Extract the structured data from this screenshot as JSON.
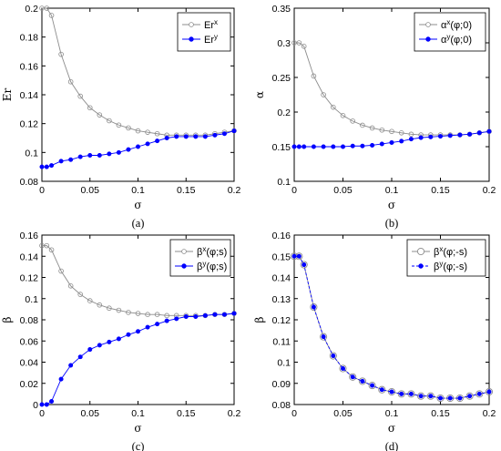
{
  "chart_data": [
    {
      "type": "line",
      "panel_label": "(a)",
      "xlabel": "σ",
      "ylabel": "Er",
      "xlim": [
        0,
        0.2
      ],
      "ylim": [
        0.08,
        0.2
      ],
      "xticks": [
        "0",
        "0.05",
        "0.1",
        "0.15",
        "0.2"
      ],
      "yticks": [
        "0.08",
        "0.1",
        "0.12",
        "0.14",
        "0.16",
        "0.18",
        "0.2"
      ],
      "xtick_values": [
        0,
        0.05,
        0.1,
        0.15,
        0.2
      ],
      "ytick_values": [
        0.08,
        0.1,
        0.12,
        0.14,
        0.16,
        0.18,
        0.2
      ],
      "legend_position": "top-right",
      "x": [
        0,
        0.005,
        0.01,
        0.02,
        0.03,
        0.04,
        0.05,
        0.06,
        0.07,
        0.08,
        0.09,
        0.1,
        0.11,
        0.12,
        0.13,
        0.14,
        0.15,
        0.16,
        0.17,
        0.18,
        0.19,
        0.2
      ],
      "series": [
        {
          "name": "Er",
          "name_sup": "x",
          "color": "#8c8c8c",
          "marker": "open-circle",
          "values": [
            0.2,
            0.2,
            0.195,
            0.168,
            0.149,
            0.139,
            0.131,
            0.126,
            0.122,
            0.119,
            0.117,
            0.115,
            0.114,
            0.113,
            0.112,
            0.112,
            0.112,
            0.112,
            0.112,
            0.113,
            0.114,
            0.115
          ]
        },
        {
          "name": "Er",
          "name_sup": "y",
          "color": "#0000ff",
          "marker": "filled-circle",
          "values": [
            0.09,
            0.09,
            0.091,
            0.094,
            0.095,
            0.097,
            0.098,
            0.098,
            0.099,
            0.1,
            0.102,
            0.104,
            0.106,
            0.108,
            0.11,
            0.111,
            0.111,
            0.111,
            0.111,
            0.112,
            0.113,
            0.115
          ]
        }
      ]
    },
    {
      "type": "line",
      "panel_label": "(b)",
      "xlabel": "σ",
      "ylabel": "α",
      "xlim": [
        0,
        0.2
      ],
      "ylim": [
        0.1,
        0.35
      ],
      "xticks": [
        "0",
        "0.05",
        "0.1",
        "0.15",
        "0.2"
      ],
      "yticks": [
        "0.1",
        "0.15",
        "0.2",
        "0.25",
        "0.3",
        "0.35"
      ],
      "xtick_values": [
        0,
        0.05,
        0.1,
        0.15,
        0.2
      ],
      "ytick_values": [
        0.1,
        0.15,
        0.2,
        0.25,
        0.3,
        0.35
      ],
      "legend_position": "top-right",
      "x": [
        0,
        0.005,
        0.01,
        0.02,
        0.03,
        0.04,
        0.05,
        0.06,
        0.07,
        0.08,
        0.09,
        0.1,
        0.11,
        0.12,
        0.13,
        0.14,
        0.15,
        0.16,
        0.17,
        0.18,
        0.19,
        0.2
      ],
      "series": [
        {
          "name": "α",
          "name_sup": "x",
          "name_suffix": "(φ;0)",
          "color": "#8c8c8c",
          "marker": "open-circle",
          "values": [
            0.3,
            0.3,
            0.295,
            0.252,
            0.225,
            0.207,
            0.195,
            0.187,
            0.181,
            0.177,
            0.174,
            0.172,
            0.17,
            0.168,
            0.167,
            0.167,
            0.167,
            0.167,
            0.167,
            0.168,
            0.17,
            0.172
          ]
        },
        {
          "name": "α",
          "name_sup": "y",
          "name_suffix": "(φ;0)",
          "color": "#0000ff",
          "marker": "filled-circle",
          "values": [
            0.15,
            0.15,
            0.15,
            0.15,
            0.15,
            0.15,
            0.15,
            0.151,
            0.151,
            0.152,
            0.154,
            0.156,
            0.158,
            0.161,
            0.163,
            0.164,
            0.165,
            0.166,
            0.167,
            0.168,
            0.17,
            0.172
          ]
        }
      ]
    },
    {
      "type": "line",
      "panel_label": "(c)",
      "xlabel": "σ",
      "ylabel": "β",
      "xlim": [
        0,
        0.2
      ],
      "ylim": [
        0,
        0.16
      ],
      "xticks": [
        "0",
        "0.05",
        "0.1",
        "0.15",
        "0.2"
      ],
      "yticks": [
        "0",
        "0.02",
        "0.04",
        "0.06",
        "0.08",
        "0.1",
        "0.12",
        "0.14",
        "0.16"
      ],
      "xtick_values": [
        0,
        0.05,
        0.1,
        0.15,
        0.2
      ],
      "ytick_values": [
        0,
        0.02,
        0.04,
        0.06,
        0.08,
        0.1,
        0.12,
        0.14,
        0.16
      ],
      "legend_position": "top-right",
      "x": [
        0,
        0.005,
        0.01,
        0.02,
        0.03,
        0.04,
        0.05,
        0.06,
        0.07,
        0.08,
        0.09,
        0.1,
        0.11,
        0.12,
        0.13,
        0.14,
        0.15,
        0.16,
        0.17,
        0.18,
        0.19,
        0.2
      ],
      "series": [
        {
          "name": "β",
          "name_sup": "x",
          "name_suffix": "(φ;s)",
          "color": "#8c8c8c",
          "marker": "open-circle",
          "values": [
            0.15,
            0.15,
            0.146,
            0.126,
            0.112,
            0.104,
            0.098,
            0.094,
            0.091,
            0.089,
            0.087,
            0.086,
            0.085,
            0.085,
            0.084,
            0.084,
            0.084,
            0.084,
            0.084,
            0.085,
            0.085,
            0.086
          ]
        },
        {
          "name": "β",
          "name_sup": "y",
          "name_suffix": "(φ;s)",
          "color": "#0000ff",
          "marker": "filled-circle",
          "values": [
            0,
            0,
            0.003,
            0.024,
            0.037,
            0.045,
            0.052,
            0.056,
            0.059,
            0.062,
            0.066,
            0.069,
            0.073,
            0.076,
            0.079,
            0.081,
            0.083,
            0.083,
            0.084,
            0.085,
            0.085,
            0.086
          ]
        }
      ]
    },
    {
      "type": "line",
      "panel_label": "(d)",
      "xlabel": "σ",
      "ylabel": "β",
      "xlim": [
        0,
        0.2
      ],
      "ylim": [
        0.08,
        0.16
      ],
      "xticks": [
        "0",
        "0.05",
        "0.1",
        "0.15",
        "0.2"
      ],
      "yticks": [
        "0.08",
        "0.09",
        "0.1",
        "0.11",
        "0.12",
        "0.13",
        "0.14",
        "0.15",
        "0.16"
      ],
      "xtick_values": [
        0,
        0.05,
        0.1,
        0.15,
        0.2
      ],
      "ytick_values": [
        0.08,
        0.09,
        0.1,
        0.11,
        0.12,
        0.13,
        0.14,
        0.15,
        0.16
      ],
      "legend_position": "top-right",
      "x": [
        0,
        0.005,
        0.01,
        0.02,
        0.03,
        0.04,
        0.05,
        0.06,
        0.07,
        0.08,
        0.09,
        0.1,
        0.11,
        0.12,
        0.13,
        0.14,
        0.15,
        0.16,
        0.17,
        0.18,
        0.19,
        0.2
      ],
      "series": [
        {
          "name": "β",
          "name_sup": "x",
          "name_suffix": "(φ;-s)",
          "color": "#8c8c8c",
          "marker": "open-circle-large",
          "values": [
            0.15,
            0.15,
            0.146,
            0.126,
            0.112,
            0.103,
            0.097,
            0.093,
            0.091,
            0.089,
            0.087,
            0.086,
            0.085,
            0.085,
            0.084,
            0.084,
            0.083,
            0.083,
            0.083,
            0.084,
            0.085,
            0.086
          ]
        },
        {
          "name": "β",
          "name_sup": "y",
          "name_suffix": "(φ;-s)",
          "color": "#0000ff",
          "marker": "filled-circle",
          "dashed": true,
          "values": [
            0.15,
            0.15,
            0.146,
            0.126,
            0.112,
            0.103,
            0.097,
            0.093,
            0.091,
            0.089,
            0.087,
            0.086,
            0.085,
            0.085,
            0.084,
            0.084,
            0.083,
            0.083,
            0.083,
            0.084,
            0.085,
            0.086
          ]
        }
      ]
    }
  ]
}
